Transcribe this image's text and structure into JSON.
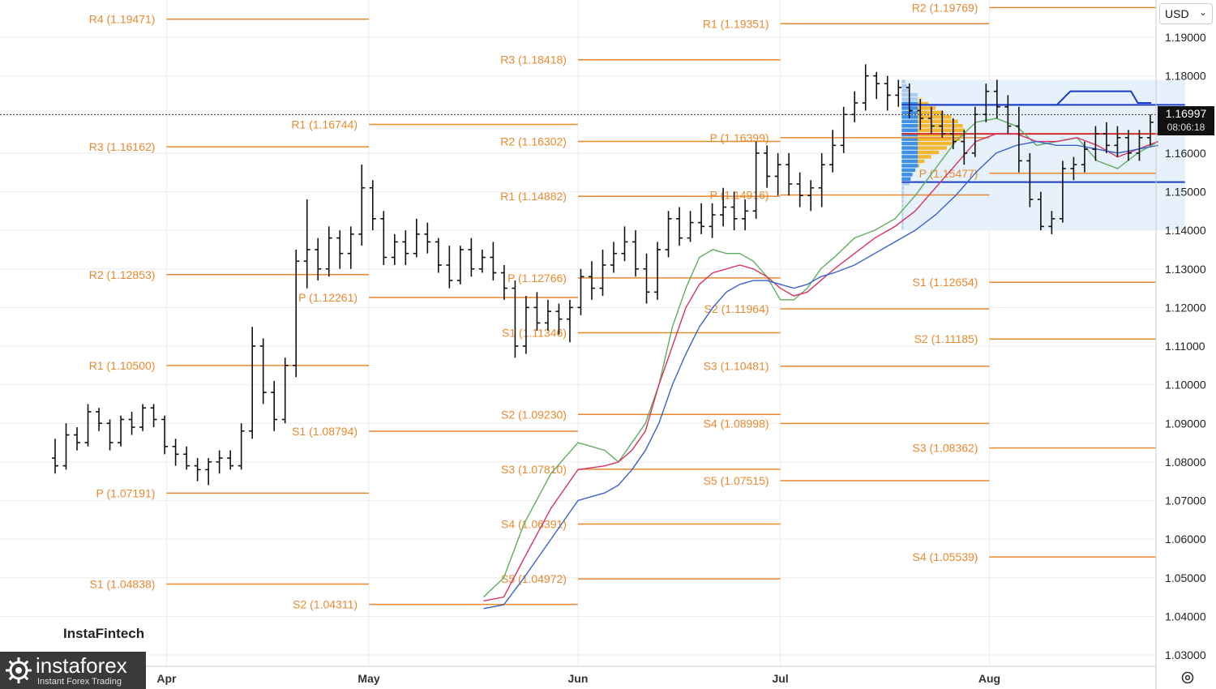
{
  "currency": {
    "label": "USD"
  },
  "price_tag": {
    "price": "1.16997",
    "timer": "08:06:18"
  },
  "brand": {
    "small": "InstaFintech",
    "name": "instaforex",
    "tagline": "Instant Forex Trading"
  },
  "colors": {
    "pivot": "#e8892e",
    "bar": "#111111",
    "ma_fast": "#5fae5f",
    "ma_mid": "#d6335f",
    "ma_slow": "#3b62c9",
    "vp_blue": "#3d8fe8",
    "vp_yellow": "#f3b731",
    "vp_bg": "#e6f1fb",
    "vp_line_blue": "#1a3ec7",
    "vp_line_red": "#d62c2c",
    "grid": "#ececec"
  },
  "chart_data": {
    "type": "ohlc",
    "instrument": "EURUSD (daily)",
    "y_axis": {
      "range": [
        1.025,
        1.2
      ],
      "ticks": [
        "1.03000",
        "1.04000",
        "1.05000",
        "1.06000",
        "1.07000",
        "1.08000",
        "1.09000",
        "1.10000",
        "1.11000",
        "1.12000",
        "1.13000",
        "1.14000",
        "1.15000",
        "1.16000",
        "1.17000",
        "1.18000",
        "1.19000"
      ]
    },
    "x_axis": {
      "months": [
        {
          "label": "Apr",
          "day": 17
        },
        {
          "label": "May",
          "day": 47
        },
        {
          "label": "Jun",
          "day": 78
        },
        {
          "label": "Jul",
          "day": 108
        },
        {
          "label": "Aug",
          "day": 139
        }
      ],
      "range_days": [
        0,
        168
      ]
    },
    "pivot_levels": [
      {
        "label": "R4 (1.19471)",
        "value": 1.19471,
        "from": 17,
        "to": 47
      },
      {
        "label": "R3 (1.16162)",
        "value": 1.16162,
        "from": 17,
        "to": 47
      },
      {
        "label": "R2 (1.12853)",
        "value": 1.12853,
        "from": 17,
        "to": 47
      },
      {
        "label": "R1 (1.10500)",
        "value": 1.105,
        "from": 17,
        "to": 47
      },
      {
        "label": "P (1.07191)",
        "value": 1.07191,
        "from": 17,
        "to": 47
      },
      {
        "label": "S1 (1.04838)",
        "value": 1.04838,
        "from": 17,
        "to": 47
      },
      {
        "label": "R1 (1.16744)",
        "value": 1.16744,
        "from": 47,
        "to": 78
      },
      {
        "label": "P (1.12261)",
        "value": 1.12261,
        "from": 47,
        "to": 78
      },
      {
        "label": "S1 (1.08794)",
        "value": 1.08794,
        "from": 47,
        "to": 78
      },
      {
        "label": "S2 (1.04311)",
        "value": 1.04311,
        "from": 47,
        "to": 78
      },
      {
        "label": "R3 (1.18418)",
        "value": 1.18418,
        "from": 78,
        "to": 108
      },
      {
        "label": "R2 (1.16302)",
        "value": 1.16302,
        "from": 78,
        "to": 108
      },
      {
        "label": "R1 (1.14882)",
        "value": 1.14882,
        "from": 78,
        "to": 108
      },
      {
        "label": "P (1.12766)",
        "value": 1.12766,
        "from": 78,
        "to": 108
      },
      {
        "label": "S1 (1.11346)",
        "value": 1.11346,
        "from": 78,
        "to": 108
      },
      {
        "label": "S2 (1.09230)",
        "value": 1.0923,
        "from": 78,
        "to": 108
      },
      {
        "label": "S3 (1.07810)",
        "value": 1.0781,
        "from": 78,
        "to": 108
      },
      {
        "label": "S4 (1.06391)",
        "value": 1.06391,
        "from": 78,
        "to": 108
      },
      {
        "label": "S5 (1.04972)",
        "value": 1.04972,
        "from": 78,
        "to": 108
      },
      {
        "label": "R1 (1.19351)",
        "value": 1.19351,
        "from": 108,
        "to": 139
      },
      {
        "label": "P (1.16399)",
        "value": 1.16399,
        "from": 108,
        "to": 139
      },
      {
        "label": "P (1.14916)",
        "value": 1.14916,
        "from": 108,
        "to": 139
      },
      {
        "label": "S1 (1.12654)",
        "value": 1.12654,
        "from": 139,
        "to": 169
      },
      {
        "label": "S2 (1.11964)",
        "value": 1.11964,
        "from": 108,
        "to": 139
      },
      {
        "label": "S3 (1.10481)",
        "value": 1.10481,
        "from": 108,
        "to": 139
      },
      {
        "label": "S4 (1.08998)",
        "value": 1.08998,
        "from": 108,
        "to": 139
      },
      {
        "label": "S5 (1.07515)",
        "value": 1.07515,
        "from": 108,
        "to": 139
      },
      {
        "label": "R2 (1.19769)",
        "value": 1.19769,
        "from": 139,
        "to": 169
      },
      {
        "label": "P (1.15477)",
        "value": 1.15477,
        "from": 139,
        "to": 169
      },
      {
        "label": "S2 (1.11185)",
        "value": 1.11185,
        "from": 139,
        "to": 169
      },
      {
        "label": "S3 (1.08362)",
        "value": 1.08362,
        "from": 139,
        "to": 169
      },
      {
        "label": "S4 (1.05539)",
        "value": 1.05539,
        "from": 139,
        "to": 169
      }
    ],
    "ohlc": [
      [
        1.081,
        1.086,
        1.077,
        1.079
      ],
      [
        1.079,
        1.09,
        1.078,
        1.087
      ],
      [
        1.087,
        1.089,
        1.083,
        1.085
      ],
      [
        1.085,
        1.095,
        1.084,
        1.093
      ],
      [
        1.093,
        1.094,
        1.088,
        1.09
      ],
      [
        1.09,
        1.091,
        1.083,
        1.085
      ],
      [
        1.085,
        1.092,
        1.084,
        1.091
      ],
      [
        1.091,
        1.093,
        1.087,
        1.089
      ],
      [
        1.089,
        1.095,
        1.088,
        1.094
      ],
      [
        1.094,
        1.095,
        1.089,
        1.091
      ],
      [
        1.091,
        1.092,
        1.082,
        1.084
      ],
      [
        1.084,
        1.086,
        1.079,
        1.082
      ],
      [
        1.082,
        1.084,
        1.078,
        1.079
      ],
      [
        1.079,
        1.081,
        1.075,
        1.078
      ],
      [
        1.078,
        1.081,
        1.074,
        1.08
      ],
      [
        1.08,
        1.083,
        1.077,
        1.081
      ],
      [
        1.081,
        1.083,
        1.078,
        1.079
      ],
      [
        1.079,
        1.09,
        1.078,
        1.088
      ],
      [
        1.088,
        1.115,
        1.086,
        1.11
      ],
      [
        1.11,
        1.112,
        1.095,
        1.098
      ],
      [
        1.098,
        1.101,
        1.088,
        1.091
      ],
      [
        1.091,
        1.107,
        1.09,
        1.105
      ],
      [
        1.105,
        1.135,
        1.102,
        1.132
      ],
      [
        1.132,
        1.148,
        1.125,
        1.135
      ],
      [
        1.135,
        1.138,
        1.127,
        1.13
      ],
      [
        1.13,
        1.141,
        1.128,
        1.138
      ],
      [
        1.138,
        1.14,
        1.13,
        1.134
      ],
      [
        1.134,
        1.141,
        1.13,
        1.139
      ],
      [
        1.139,
        1.157,
        1.136,
        1.151
      ],
      [
        1.151,
        1.153,
        1.14,
        1.143
      ],
      [
        1.143,
        1.145,
        1.131,
        1.133
      ],
      [
        1.133,
        1.139,
        1.131,
        1.137
      ],
      [
        1.137,
        1.14,
        1.131,
        1.134
      ],
      [
        1.134,
        1.143,
        1.133,
        1.139
      ],
      [
        1.139,
        1.142,
        1.134,
        1.137
      ],
      [
        1.137,
        1.138,
        1.129,
        1.131
      ],
      [
        1.131,
        1.136,
        1.125,
        1.127
      ],
      [
        1.127,
        1.136,
        1.126,
        1.135
      ],
      [
        1.135,
        1.138,
        1.128,
        1.13
      ],
      [
        1.13,
        1.135,
        1.129,
        1.133
      ],
      [
        1.133,
        1.137,
        1.127,
        1.129
      ],
      [
        1.129,
        1.131,
        1.122,
        1.125
      ],
      [
        1.125,
        1.127,
        1.107,
        1.11
      ],
      [
        1.11,
        1.123,
        1.108,
        1.12
      ],
      [
        1.12,
        1.124,
        1.114,
        1.116
      ],
      [
        1.116,
        1.122,
        1.114,
        1.119
      ],
      [
        1.119,
        1.121,
        1.113,
        1.117
      ],
      [
        1.117,
        1.122,
        1.111,
        1.12
      ],
      [
        1.12,
        1.13,
        1.118,
        1.128
      ],
      [
        1.128,
        1.132,
        1.122,
        1.125
      ],
      [
        1.125,
        1.135,
        1.123,
        1.131
      ],
      [
        1.131,
        1.137,
        1.129,
        1.134
      ],
      [
        1.134,
        1.141,
        1.132,
        1.137
      ],
      [
        1.137,
        1.14,
        1.128,
        1.13
      ],
      [
        1.13,
        1.134,
        1.121,
        1.124
      ],
      [
        1.124,
        1.137,
        1.122,
        1.135
      ],
      [
        1.135,
        1.145,
        1.133,
        1.143
      ],
      [
        1.143,
        1.146,
        1.136,
        1.138
      ],
      [
        1.138,
        1.145,
        1.137,
        1.142
      ],
      [
        1.142,
        1.147,
        1.139,
        1.141
      ],
      [
        1.141,
        1.147,
        1.138,
        1.144
      ],
      [
        1.144,
        1.151,
        1.141,
        1.146
      ],
      [
        1.146,
        1.15,
        1.14,
        1.143
      ],
      [
        1.143,
        1.148,
        1.14,
        1.145
      ],
      [
        1.145,
        1.163,
        1.143,
        1.16
      ],
      [
        1.16,
        1.162,
        1.151,
        1.154
      ],
      [
        1.154,
        1.16,
        1.149,
        1.157
      ],
      [
        1.157,
        1.16,
        1.149,
        1.152
      ],
      [
        1.152,
        1.155,
        1.146,
        1.149
      ],
      [
        1.149,
        1.153,
        1.145,
        1.151
      ],
      [
        1.151,
        1.16,
        1.146,
        1.157
      ],
      [
        1.157,
        1.166,
        1.155,
        1.162
      ],
      [
        1.162,
        1.172,
        1.16,
        1.17
      ],
      [
        1.17,
        1.176,
        1.168,
        1.173
      ],
      [
        1.173,
        1.183,
        1.171,
        1.18
      ],
      [
        1.18,
        1.181,
        1.174,
        1.178
      ],
      [
        1.178,
        1.18,
        1.171,
        1.175
      ],
      [
        1.175,
        1.179,
        1.172,
        1.177
      ],
      [
        1.177,
        1.178,
        1.169,
        1.171
      ],
      [
        1.171,
        1.174,
        1.166,
        1.169
      ],
      [
        1.169,
        1.172,
        1.165,
        1.167
      ],
      [
        1.167,
        1.171,
        1.164,
        1.165
      ],
      [
        1.165,
        1.169,
        1.161,
        1.163
      ],
      [
        1.163,
        1.166,
        1.157,
        1.16
      ],
      [
        1.16,
        1.172,
        1.159,
        1.17
      ],
      [
        1.17,
        1.178,
        1.168,
        1.176
      ],
      [
        1.176,
        1.179,
        1.169,
        1.172
      ],
      [
        1.172,
        1.175,
        1.165,
        1.167
      ],
      [
        1.167,
        1.172,
        1.155,
        1.158
      ],
      [
        1.158,
        1.16,
        1.146,
        1.148
      ],
      [
        1.148,
        1.15,
        1.14,
        1.141
      ],
      [
        1.141,
        1.145,
        1.139,
        1.143
      ],
      [
        1.143,
        1.158,
        1.142,
        1.156
      ],
      [
        1.156,
        1.159,
        1.153,
        1.157
      ],
      [
        1.157,
        1.163,
        1.155,
        1.161
      ],
      [
        1.161,
        1.167,
        1.158,
        1.165
      ],
      [
        1.165,
        1.168,
        1.16,
        1.162
      ],
      [
        1.162,
        1.167,
        1.159,
        1.164
      ],
      [
        1.164,
        1.166,
        1.158,
        1.16
      ],
      [
        1.16,
        1.166,
        1.158,
        1.164
      ],
      [
        1.164,
        1.17,
        1.162,
        1.168
      ]
    ],
    "ma_fast": [
      [
        0,
        1.045
      ],
      [
        3,
        1.05
      ],
      [
        6,
        1.064
      ],
      [
        10,
        1.077
      ],
      [
        14,
        1.085
      ],
      [
        18,
        1.083
      ],
      [
        20,
        1.08
      ],
      [
        22,
        1.085
      ],
      [
        24,
        1.09
      ],
      [
        26,
        1.1
      ],
      [
        28,
        1.115
      ],
      [
        30,
        1.125
      ],
      [
        32,
        1.133
      ],
      [
        34,
        1.135
      ],
      [
        36,
        1.134
      ],
      [
        38,
        1.134
      ],
      [
        40,
        1.132
      ],
      [
        42,
        1.128
      ],
      [
        44,
        1.122
      ],
      [
        46,
        1.122
      ],
      [
        48,
        1.125
      ],
      [
        50,
        1.13
      ],
      [
        52,
        1.133
      ],
      [
        55,
        1.138
      ],
      [
        58,
        1.14
      ],
      [
        61,
        1.143
      ],
      [
        64,
        1.149
      ],
      [
        67,
        1.156
      ],
      [
        70,
        1.163
      ],
      [
        73,
        1.168
      ],
      [
        76,
        1.169
      ],
      [
        79,
        1.167
      ],
      [
        82,
        1.162
      ],
      [
        85,
        1.163
      ],
      [
        88,
        1.164
      ],
      [
        91,
        1.158
      ],
      [
        94,
        1.156
      ],
      [
        97,
        1.16
      ],
      [
        100,
        1.163
      ]
    ],
    "ma_mid": [
      [
        0,
        1.044
      ],
      [
        3,
        1.045
      ],
      [
        6,
        1.055
      ],
      [
        10,
        1.068
      ],
      [
        14,
        1.078
      ],
      [
        18,
        1.079
      ],
      [
        20,
        1.08
      ],
      [
        22,
        1.083
      ],
      [
        24,
        1.088
      ],
      [
        26,
        1.1
      ],
      [
        28,
        1.11
      ],
      [
        30,
        1.12
      ],
      [
        32,
        1.126
      ],
      [
        34,
        1.129
      ],
      [
        36,
        1.13
      ],
      [
        38,
        1.131
      ],
      [
        40,
        1.13
      ],
      [
        42,
        1.128
      ],
      [
        44,
        1.125
      ],
      [
        46,
        1.123
      ],
      [
        48,
        1.124
      ],
      [
        50,
        1.127
      ],
      [
        52,
        1.13
      ],
      [
        55,
        1.134
      ],
      [
        58,
        1.138
      ],
      [
        61,
        1.141
      ],
      [
        64,
        1.145
      ],
      [
        67,
        1.151
      ],
      [
        70,
        1.157
      ],
      [
        73,
        1.163
      ],
      [
        76,
        1.165
      ],
      [
        79,
        1.165
      ],
      [
        82,
        1.163
      ],
      [
        85,
        1.163
      ],
      [
        88,
        1.164
      ],
      [
        91,
        1.162
      ],
      [
        94,
        1.159
      ],
      [
        97,
        1.161
      ],
      [
        100,
        1.163
      ]
    ],
    "ma_slow": [
      [
        0,
        1.042
      ],
      [
        3,
        1.043
      ],
      [
        6,
        1.05
      ],
      [
        10,
        1.06
      ],
      [
        14,
        1.07
      ],
      [
        18,
        1.072
      ],
      [
        20,
        1.074
      ],
      [
        22,
        1.078
      ],
      [
        24,
        1.083
      ],
      [
        26,
        1.09
      ],
      [
        28,
        1.1
      ],
      [
        30,
        1.108
      ],
      [
        32,
        1.115
      ],
      [
        34,
        1.12
      ],
      [
        36,
        1.124
      ],
      [
        38,
        1.126
      ],
      [
        40,
        1.127
      ],
      [
        42,
        1.127
      ],
      [
        44,
        1.126
      ],
      [
        46,
        1.125
      ],
      [
        48,
        1.126
      ],
      [
        50,
        1.128
      ],
      [
        52,
        1.129
      ],
      [
        55,
        1.131
      ],
      [
        58,
        1.134
      ],
      [
        61,
        1.137
      ],
      [
        64,
        1.14
      ],
      [
        67,
        1.144
      ],
      [
        70,
        1.149
      ],
      [
        73,
        1.155
      ],
      [
        76,
        1.16
      ],
      [
        79,
        1.162
      ],
      [
        82,
        1.163
      ],
      [
        85,
        1.162
      ],
      [
        88,
        1.162
      ],
      [
        91,
        1.161
      ],
      [
        94,
        1.16
      ],
      [
        97,
        1.161
      ],
      [
        100,
        1.162
      ]
    ],
    "volume_profile": {
      "day_from": 126,
      "day_to": 168,
      "price_top": 1.179,
      "price_bottom": 1.14,
      "upper_line": 1.1725,
      "lower_line": 1.1525,
      "poc": 1.165,
      "vah_step": [
        [
          126,
          1.1725
        ],
        [
          149,
          1.1725
        ],
        [
          151,
          1.176
        ],
        [
          160,
          1.176
        ],
        [
          161,
          1.173
        ],
        [
          163,
          1.173
        ]
      ]
    },
    "last_price": 1.16997,
    "title": ""
  }
}
